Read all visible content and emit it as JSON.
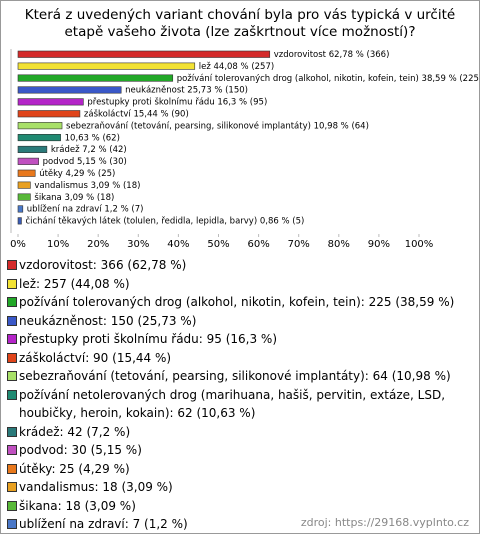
{
  "chart_data": {
    "type": "bar",
    "orientation": "horizontal",
    "title": "Která z uvedených variant chování byla pro vás typická v určité etapě vašeho života (lze zaškrtnout více možností)?",
    "categories": [
      "vzdorovitost: 366 (62,78 %)",
      "lež: 257 (44,08 %)",
      "požívání tolerovaných drog (alkohol, nikotin, kofein, tein): 225 (38,59 %)",
      "neukázněnost: 150 (25,73 %)",
      "přestupky proti školnímu řádu: 95 (16,3 %)",
      "záškoláctví: 90 (15,44 %)",
      "sebezraňování (tetování, pearsing, silikonové implantáty): 64 (10,98 %)",
      "požívání netolerovaných drog (marihuana, hašiš, pervitin, extáze, LSD, houbičky, heroin, kokain): 62 (10,63 %)",
      "krádež: 42 (7,2 %)",
      "podvod: 30 (5,15 %)",
      "útěky: 25 (4,29 %)",
      "vandalismus: 18 (3,09 %)",
      "šikana: 18 (3,09 %)",
      "ublížení na zdraví: 7 (1,2 %)",
      "čichání těkavých látek (tolulen, ředidla, lepidla, barvy): 5 (0,86 %)"
    ],
    "values": [
      62.78,
      44.08,
      38.59,
      25.73,
      16.3,
      15.44,
      10.98,
      10.63,
      7.2,
      5.15,
      4.29,
      3.09,
      3.09,
      1.2,
      0.86
    ],
    "value_labels": [
      "vzdorovitost 62,78 % (366)",
      "lež 44,08 % (257)",
      "požívání tolerovaných drog (alkohol, nikotin, kofein, tein) 38,59 % (225)",
      "neukázněnost 25,73 % (150)",
      "přestupky proti školnímu řádu 16,3 % (95)",
      "záškoláctví 15,44 % (90)",
      "sebezraňování (tetování, pearsing, silikonové implantáty) 10,98 % (64)",
      "10,63 % (62)",
      "krádež 7,2 % (42)",
      "podvod 5,15 % (30)",
      "útěky 4,29 % (25)",
      "vandalismus 3,09 % (18)",
      "šikana 3,09 % (18)",
      "ublížení na zdraví 1,2 % (7)",
      "čichání těkavých látek (tolulen, ředidla, lepidla, barvy) 0,86 % (5)"
    ],
    "colors": [
      "#d42a2a",
      "#f2e234",
      "#22a828",
      "#3a58c8",
      "#b424c8",
      "#e0441a",
      "#a8e068",
      "#1f8a72",
      "#2a7a7a",
      "#c050c0",
      "#e8781c",
      "#e8a020",
      "#58b838",
      "#4a78c8",
      "#3a5cb8"
    ],
    "xlim": [
      0,
      100
    ],
    "xticks": [
      {
        "value": 0,
        "label": "0%"
      },
      {
        "value": 10,
        "label": "10%"
      },
      {
        "value": 20,
        "label": "20%"
      },
      {
        "value": 30,
        "label": "30%"
      },
      {
        "value": 40,
        "label": "40%"
      },
      {
        "value": 50,
        "label": "50%"
      },
      {
        "value": 60,
        "label": "60%"
      },
      {
        "value": 70,
        "label": "70%"
      },
      {
        "value": 80,
        "label": "80%"
      },
      {
        "value": 90,
        "label": "90%"
      },
      {
        "value": 100,
        "label": "100%"
      }
    ],
    "source": "zdroj: https://29168.vyplnto.cz"
  }
}
